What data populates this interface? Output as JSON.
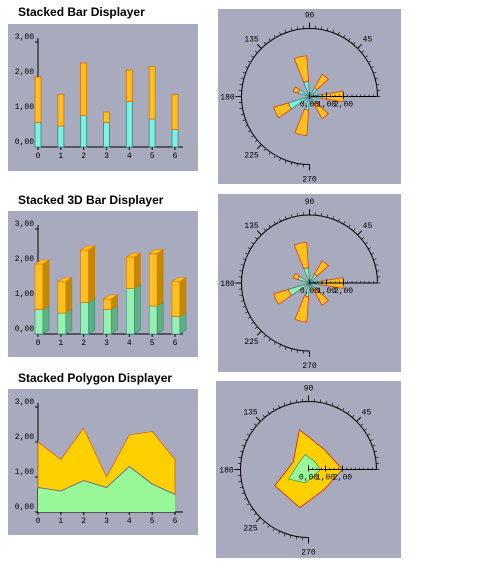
{
  "chart_data": [
    {
      "type": "bar",
      "title": "Stacked Bar Displayer",
      "categories": [
        "0",
        "1",
        "2",
        "3",
        "4",
        "5",
        "6"
      ],
      "series": [
        {
          "color": "#80f0e0",
          "values": [
            0.7,
            0.6,
            0.9,
            0.7,
            1.3,
            0.8,
            0.5
          ]
        },
        {
          "color": "#ffc020",
          "values": [
            1.3,
            0.9,
            1.5,
            0.3,
            0.9,
            1.5,
            1.0
          ]
        }
      ],
      "ylim": [
        0,
        3
      ],
      "yticks": [
        {
          "value": 0,
          "label": "0,00"
        },
        {
          "value": 1,
          "label": "1,00"
        },
        {
          "value": 2,
          "label": "2,00"
        },
        {
          "value": 3,
          "label": "3,00"
        }
      ]
    },
    {
      "type": "polar_bar",
      "categories": [
        "0",
        "1",
        "2",
        "3",
        "4",
        "5",
        "6"
      ],
      "series": [
        {
          "color": "#80f0e0",
          "values": [
            0.7,
            0.6,
            0.9,
            0.7,
            1.3,
            0.8,
            0.5
          ]
        },
        {
          "color": "#ffc020",
          "values": [
            1.3,
            0.9,
            1.5,
            0.3,
            0.9,
            1.5,
            1.0
          ]
        }
      ],
      "rlim": [
        0,
        4
      ],
      "rticks": [
        {
          "value": 0,
          "label": "0,00"
        },
        {
          "value": 1,
          "label": "1,00"
        },
        {
          "value": 2,
          "label": "2,00"
        }
      ],
      "angle_ticks": [
        45,
        90,
        135,
        180,
        225,
        270
      ]
    },
    {
      "type": "bar3d",
      "title": "Stacked 3D Bar Displayer",
      "categories": [
        "0",
        "1",
        "2",
        "3",
        "4",
        "5",
        "6"
      ],
      "series": [
        {
          "color": "#98f0b0",
          "values": [
            0.7,
            0.6,
            0.9,
            0.7,
            1.3,
            0.8,
            0.5
          ]
        },
        {
          "color": "#ffc020",
          "values": [
            1.3,
            0.9,
            1.5,
            0.3,
            0.9,
            1.5,
            1.0
          ]
        }
      ],
      "ylim": [
        0,
        3
      ],
      "yticks": [
        {
          "value": 0,
          "label": "0,00"
        },
        {
          "value": 1,
          "label": "1,00"
        },
        {
          "value": 2,
          "label": "2,00"
        },
        {
          "value": 3,
          "label": "3,00"
        }
      ]
    },
    {
      "type": "polar_bar",
      "categories": [
        "0",
        "1",
        "2",
        "3",
        "4",
        "5",
        "6"
      ],
      "series": [
        {
          "color": "#98f0b0",
          "values": [
            0.7,
            0.6,
            0.9,
            0.7,
            1.3,
            0.8,
            0.5
          ]
        },
        {
          "color": "#ffc020",
          "values": [
            1.3,
            0.9,
            1.5,
            0.3,
            0.9,
            1.5,
            1.0
          ]
        }
      ],
      "rlim": [
        0,
        4
      ],
      "rticks": [
        {
          "value": 0,
          "label": "0,00"
        },
        {
          "value": 1,
          "label": "1,00"
        },
        {
          "value": 2,
          "label": "2,00"
        }
      ],
      "angle_ticks": [
        45,
        90,
        135,
        180,
        225,
        270
      ]
    },
    {
      "type": "area",
      "title": "Stacked Polygon Displayer",
      "categories": [
        "0",
        "1",
        "2",
        "3",
        "4",
        "5",
        "6"
      ],
      "series": [
        {
          "color": "#98f898",
          "values": [
            0.7,
            0.6,
            0.9,
            0.7,
            1.3,
            0.8,
            0.5
          ]
        },
        {
          "color": "#ffd000",
          "values": [
            1.3,
            0.9,
            1.5,
            0.3,
            0.9,
            1.5,
            1.0
          ]
        }
      ],
      "ylim": [
        0,
        3
      ],
      "yticks": [
        {
          "value": 0,
          "label": "0,00"
        },
        {
          "value": 1,
          "label": "1,00"
        },
        {
          "value": 2,
          "label": "2,00"
        },
        {
          "value": 3,
          "label": "3,00"
        }
      ]
    },
    {
      "type": "polar_area",
      "categories": [
        "0",
        "1",
        "2",
        "3",
        "4",
        "5",
        "6"
      ],
      "series": [
        {
          "color": "#98f898",
          "values": [
            0.7,
            0.6,
            0.9,
            0.7,
            1.3,
            0.8,
            0.5
          ]
        },
        {
          "color": "#ffd000",
          "values": [
            1.3,
            0.9,
            1.5,
            0.3,
            0.9,
            1.5,
            1.0
          ]
        }
      ],
      "rlim": [
        0,
        4
      ],
      "rticks": [
        {
          "value": 0,
          "label": "0,00"
        },
        {
          "value": 1,
          "label": "1,00"
        },
        {
          "value": 2,
          "label": "2,00"
        }
      ],
      "angle_ticks": [
        45,
        90,
        135,
        180,
        225,
        270
      ]
    }
  ]
}
